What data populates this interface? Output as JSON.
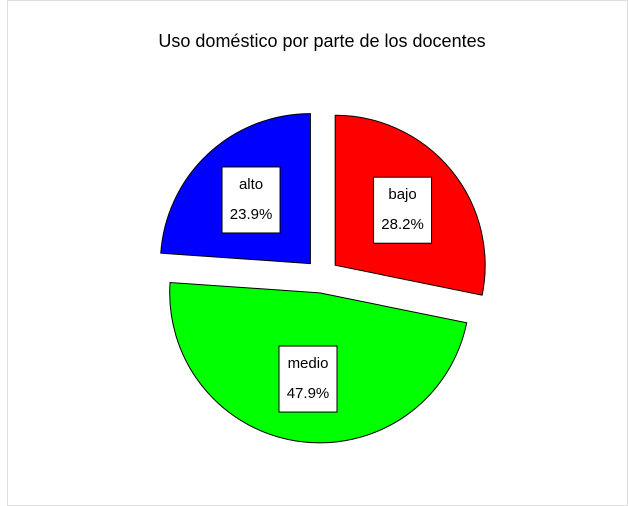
{
  "chart_data": {
    "type": "pie",
    "title": "Uso doméstico por parte de los docentes",
    "categories": [
      "bajo",
      "medio",
      "alto"
    ],
    "values": [
      28.2,
      47.9,
      23.9
    ],
    "value_labels": [
      "28.2%",
      "47.9%",
      "23.9%"
    ],
    "colors": [
      "#ff0000",
      "#00ff00",
      "#0000ff"
    ]
  }
}
